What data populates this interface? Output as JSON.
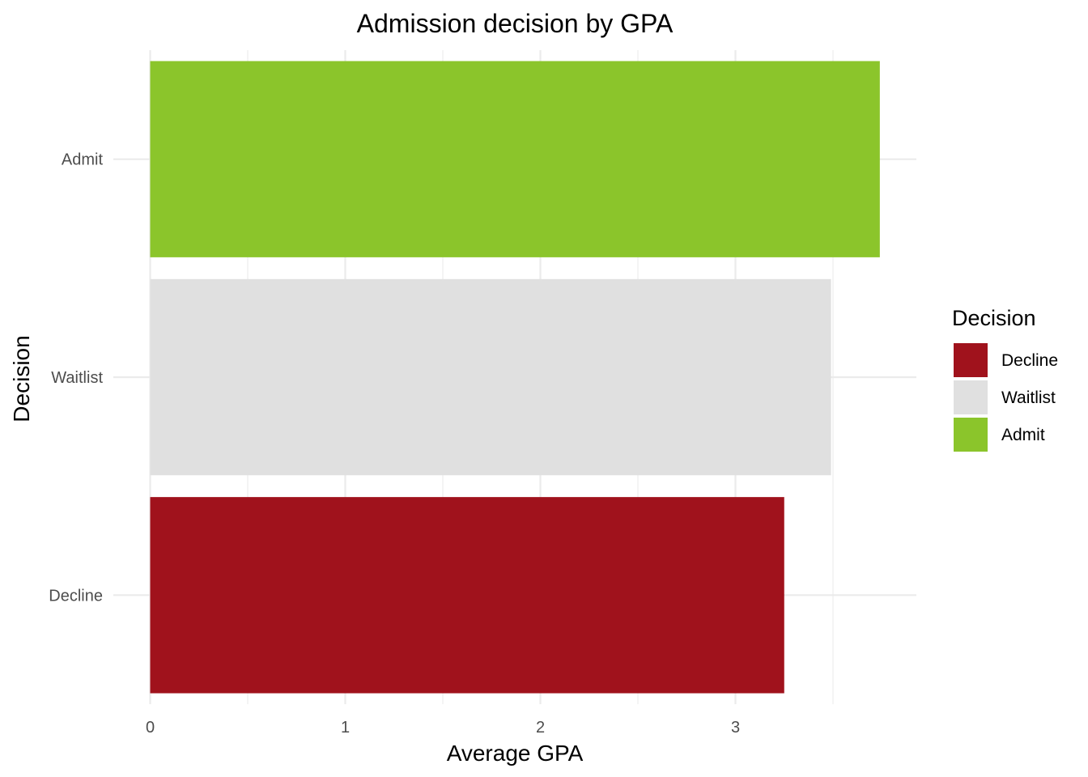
{
  "chart_data": {
    "type": "bar",
    "orientation": "horizontal",
    "title": "Admission decision by GPA",
    "xlabel": "Average GPA",
    "ylabel": "Decision",
    "categories": [
      "Decline",
      "Waitlist",
      "Admit"
    ],
    "values": [
      3.25,
      3.49,
      3.74
    ],
    "colors": [
      "#a0121c",
      "#e0e0e0",
      "#8bc52b"
    ],
    "xlim": [
      0,
      3.92
    ],
    "x_ticks": [
      0,
      1,
      2,
      3
    ],
    "grid": true,
    "legend": {
      "title": "Decision",
      "position": "right",
      "items": [
        "Decline",
        "Waitlist",
        "Admit"
      ]
    }
  }
}
